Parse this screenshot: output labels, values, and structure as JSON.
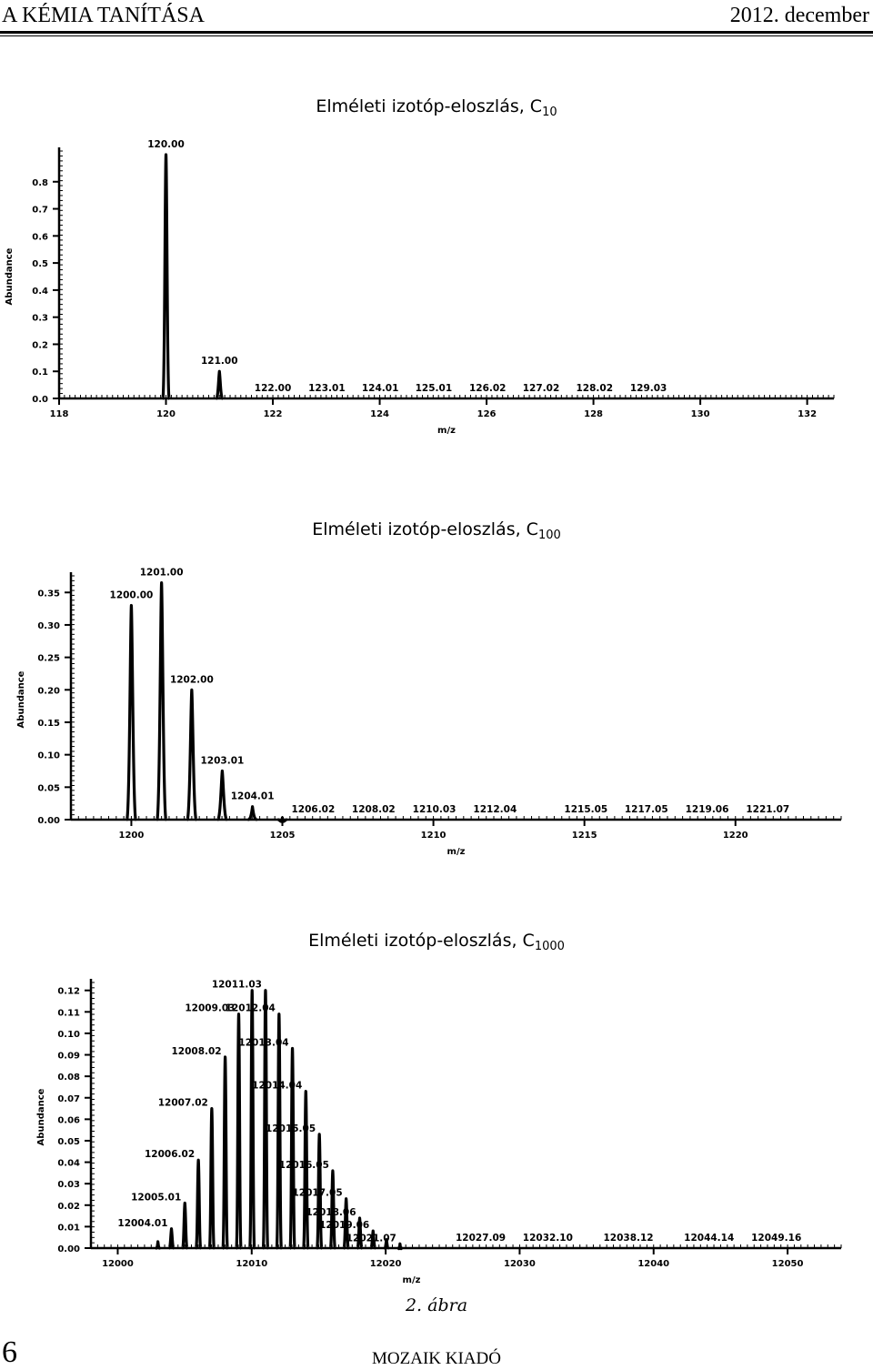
{
  "header": {
    "left": "A KÉMIA TANÍTÁSA",
    "right": "2012. december"
  },
  "caption": "2. ábra",
  "page_number": "6",
  "publisher": "MOZAIK KIADÓ",
  "chart_data": [
    {
      "type": "line",
      "title": "Elméleti izotóp-eloszlás, C",
      "title_subscript": "10",
      "xlabel": "m/z",
      "ylabel": "Abundance",
      "xlim": [
        118,
        132.5
      ],
      "ylim": [
        0,
        0.9
      ],
      "x_ticks": [
        "118",
        "120",
        "122",
        "124",
        "126",
        "128",
        "130",
        "132"
      ],
      "y_ticks": [
        "0.0",
        "0.1",
        "0.2",
        "0.3",
        "0.4",
        "0.5",
        "0.6",
        "0.7",
        "0.8"
      ],
      "peak_width": 0.12,
      "peaks": [
        {
          "x": 120.0,
          "y": 0.9,
          "label": "120.00"
        },
        {
          "x": 121.0,
          "y": 0.1,
          "label": "121.00"
        },
        {
          "x": 122.0,
          "y": 0.0,
          "label": "122.00"
        },
        {
          "x": 123.01,
          "y": 0.0,
          "label": "123.01"
        },
        {
          "x": 124.01,
          "y": 0.0,
          "label": "124.01"
        },
        {
          "x": 125.01,
          "y": 0.0,
          "label": "125.01"
        },
        {
          "x": 126.02,
          "y": 0.0,
          "label": "126.02"
        },
        {
          "x": 127.02,
          "y": 0.0,
          "label": "127.02"
        },
        {
          "x": 128.02,
          "y": 0.0,
          "label": "128.02"
        },
        {
          "x": 129.03,
          "y": 0.0,
          "label": "129.03"
        }
      ]
    },
    {
      "type": "line",
      "title": "Elméleti izotóp-eloszlás, C",
      "title_subscript": "100",
      "xlabel": "m/z",
      "ylabel": "Abundance",
      "xlim": [
        1198,
        1223.5
      ],
      "ylim": [
        0,
        0.37
      ],
      "x_ticks": [
        "1200",
        "1205",
        "1210",
        "1215",
        "1220"
      ],
      "y_ticks": [
        "0.00",
        "0.05",
        "0.10",
        "0.15",
        "0.20",
        "0.25",
        "0.30",
        "0.35"
      ],
      "peak_width": 0.3,
      "peaks": [
        {
          "x": 1200.0,
          "y": 0.33,
          "label": "1200.00"
        },
        {
          "x": 1201.0,
          "y": 0.365,
          "label": "1201.00"
        },
        {
          "x": 1202.0,
          "y": 0.2,
          "label": "1202.00"
        },
        {
          "x": 1203.01,
          "y": 0.075,
          "label": "1203.01"
        },
        {
          "x": 1204.01,
          "y": 0.02,
          "label": "1204.01"
        },
        {
          "x": 1205.0,
          "y": 0.003,
          "label": ""
        },
        {
          "x": 1206.02,
          "y": 0.0,
          "label": "1206.02"
        },
        {
          "x": 1208.02,
          "y": 0.0,
          "label": "1208.02"
        },
        {
          "x": 1210.03,
          "y": 0.0,
          "label": "1210.03"
        },
        {
          "x": 1212.04,
          "y": 0.0,
          "label": "1212.04"
        },
        {
          "x": 1215.05,
          "y": 0.0,
          "label": "1215.05"
        },
        {
          "x": 1217.05,
          "y": 0.0,
          "label": "1217.05"
        },
        {
          "x": 1219.06,
          "y": 0.0,
          "label": "1219.06"
        },
        {
          "x": 1221.07,
          "y": 0.0,
          "label": "1221.07"
        }
      ]
    },
    {
      "type": "line",
      "title": "Elméleti izotóp-eloszlás, C",
      "title_subscript": "1000",
      "xlabel": "m/z",
      "ylabel": "Abundance",
      "xlim": [
        11998,
        12054
      ],
      "ylim": [
        0,
        0.122
      ],
      "x_ticks": [
        "12000",
        "12010",
        "12020",
        "12030",
        "12040",
        "12050"
      ],
      "y_ticks": [
        "0.00",
        "0.01",
        "0.02",
        "0.03",
        "0.04",
        "0.05",
        "0.06",
        "0.07",
        "0.08",
        "0.09",
        "0.10",
        "0.11",
        "0.12"
      ],
      "peak_width": 0.35,
      "peaks": [
        {
          "x": 12003.0,
          "y": 0.003,
          "label": ""
        },
        {
          "x": 12004.01,
          "y": 0.009,
          "label": "12004.01"
        },
        {
          "x": 12005.01,
          "y": 0.021,
          "label": "12005.01"
        },
        {
          "x": 12006.02,
          "y": 0.041,
          "label": "12006.02"
        },
        {
          "x": 12007.02,
          "y": 0.065,
          "label": "12007.02"
        },
        {
          "x": 12008.02,
          "y": 0.089,
          "label": "12008.02"
        },
        {
          "x": 12009.03,
          "y": 0.109,
          "label": "12009.03"
        },
        {
          "x": 12010.03,
          "y": 0.12,
          "label": ""
        },
        {
          "x": 12011.03,
          "y": 0.12,
          "label": "12011.03"
        },
        {
          "x": 12012.04,
          "y": 0.109,
          "label": "12012.04"
        },
        {
          "x": 12013.04,
          "y": 0.093,
          "label": "12013.04"
        },
        {
          "x": 12014.04,
          "y": 0.073,
          "label": "12014.04"
        },
        {
          "x": 12015.05,
          "y": 0.053,
          "label": "12015.05"
        },
        {
          "x": 12016.05,
          "y": 0.036,
          "label": "12016.05"
        },
        {
          "x": 12017.05,
          "y": 0.023,
          "label": "12017.05"
        },
        {
          "x": 12018.06,
          "y": 0.014,
          "label": "12018.06"
        },
        {
          "x": 12019.06,
          "y": 0.008,
          "label": "12019.06"
        },
        {
          "x": 12020.06,
          "y": 0.004,
          "label": ""
        },
        {
          "x": 12021.07,
          "y": 0.002,
          "label": "12021.07"
        },
        {
          "x": 12027.09,
          "y": 0.0,
          "label": "12027.09"
        },
        {
          "x": 12032.1,
          "y": 0.0,
          "label": "12032.10"
        },
        {
          "x": 12038.12,
          "y": 0.0,
          "label": "12038.12"
        },
        {
          "x": 12044.14,
          "y": 0.0,
          "label": "12044.14"
        },
        {
          "x": 12049.16,
          "y": 0.0,
          "label": "12049.16"
        }
      ]
    }
  ]
}
